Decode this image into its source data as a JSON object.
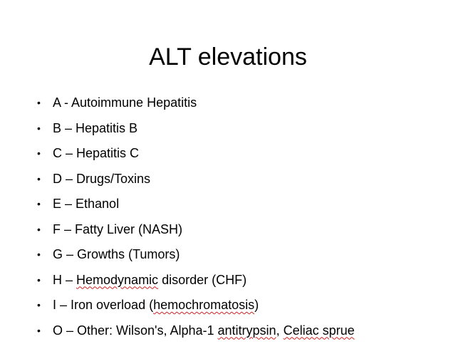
{
  "slide": {
    "title": "ALT elevations",
    "bullet_glyph": "•",
    "items": [
      {
        "parts": [
          {
            "text": "A - Autoimmune Hepatitis",
            "spell": false
          }
        ]
      },
      {
        "parts": [
          {
            "text": "B – Hepatitis B",
            "spell": false
          }
        ]
      },
      {
        "parts": [
          {
            "text": "C – Hepatitis C",
            "spell": false
          }
        ]
      },
      {
        "parts": [
          {
            "text": "D – Drugs/Toxins",
            "spell": false
          }
        ]
      },
      {
        "parts": [
          {
            "text": "E – Ethanol",
            "spell": false
          }
        ]
      },
      {
        "parts": [
          {
            "text": "F – Fatty Liver (NASH)",
            "spell": false
          }
        ]
      },
      {
        "parts": [
          {
            "text": "G – Growths (Tumors)",
            "spell": false
          }
        ]
      },
      {
        "parts": [
          {
            "text": "H – ",
            "spell": false
          },
          {
            "text": "Hemodynamic",
            "spell": true
          },
          {
            "text": " disorder (CHF)",
            "spell": false
          }
        ]
      },
      {
        "parts": [
          {
            "text": "I – Iron overload (",
            "spell": false
          },
          {
            "text": "hemochromatosis",
            "spell": true
          },
          {
            "text": ")",
            "spell": false
          }
        ]
      },
      {
        "parts": [
          {
            "text": "O – Other: Wilson's, Alpha-1 ",
            "spell": false
          },
          {
            "text": "antitrypsin",
            "spell": true
          },
          {
            "text": ", ",
            "spell": false
          },
          {
            "text": "Celiac sprue",
            "spell": true
          }
        ]
      }
    ],
    "colors": {
      "background": "#ffffff",
      "text": "#000000",
      "spellcheck_underline": "#d02020"
    }
  }
}
